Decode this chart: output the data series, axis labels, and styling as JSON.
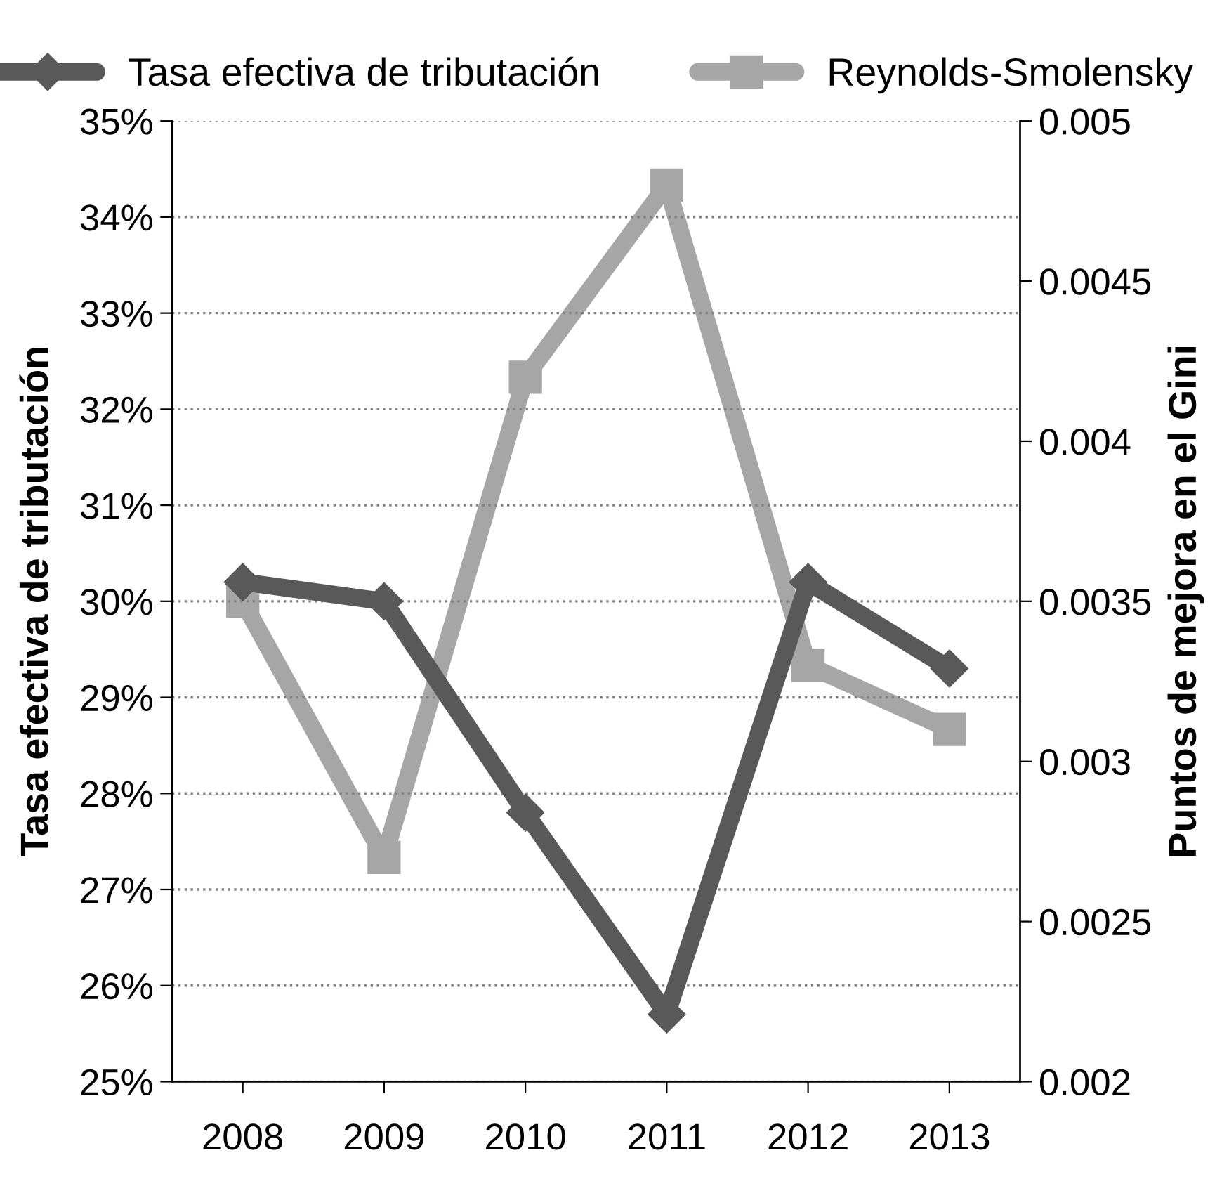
{
  "chart_data": {
    "type": "line",
    "categories": [
      "2008",
      "2009",
      "2010",
      "2011",
      "2012",
      "2013"
    ],
    "series": [
      {
        "name": "Tasa efectiva de tributación",
        "color": "#595959",
        "marker": "diamond",
        "values": [
          30.2,
          30.0,
          27.8,
          25.7,
          30.2,
          29.3
        ]
      },
      {
        "name": "Reynolds-Smolensky",
        "color": "#a6a6a6",
        "marker": "square",
        "axis": "y2",
        "values": [
          0.0035,
          0.0027,
          0.0042,
          0.0048,
          0.0033,
          0.0031
        ]
      }
    ],
    "ylabel": "Tasa efectiva de tributación",
    "y2label": "Puntos de mejora en el Gini",
    "ylim": [
      25,
      35
    ],
    "yticks": [
      {
        "value": 25,
        "label": "25%"
      },
      {
        "value": 26,
        "label": "26%"
      },
      {
        "value": 27,
        "label": "27%"
      },
      {
        "value": 28,
        "label": "28%"
      },
      {
        "value": 29,
        "label": "29%"
      },
      {
        "value": 30,
        "label": "30%"
      },
      {
        "value": 31,
        "label": "31%"
      },
      {
        "value": 32,
        "label": "32%"
      },
      {
        "value": 33,
        "label": "33%"
      },
      {
        "value": 34,
        "label": "34%"
      },
      {
        "value": 35,
        "label": "35%"
      }
    ],
    "y2lim": [
      0.002,
      0.005
    ],
    "y2ticks": [
      0.002,
      0.0025,
      0.003,
      0.0035,
      0.004,
      0.0045,
      0.005
    ],
    "grid": "y",
    "legend": "top",
    "line_style": "solid"
  }
}
